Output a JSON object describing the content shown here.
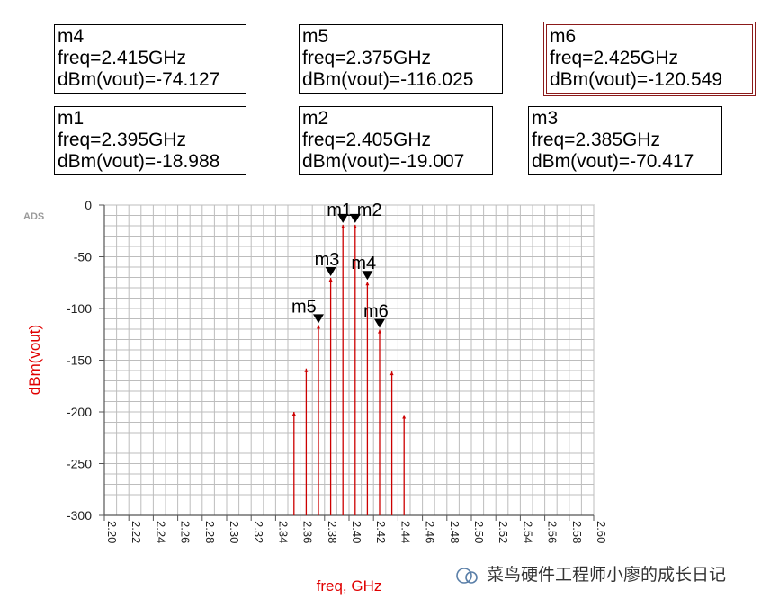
{
  "markers": [
    {
      "id": "m4",
      "name": "m4",
      "freq_label": "freq=2.415GHz",
      "value_label": "dBm(vout)=-74.127",
      "freq": 2.415,
      "value": -74.127
    },
    {
      "id": "m5",
      "name": "m5",
      "freq_label": "freq=2.375GHz",
      "value_label": "dBm(vout)=-116.025",
      "freq": 2.375,
      "value": -116.025
    },
    {
      "id": "m6",
      "name": "m6",
      "freq_label": "freq=2.425GHz",
      "value_label": "dBm(vout)=-120.549",
      "freq": 2.425,
      "value": -120.549
    },
    {
      "id": "m1",
      "name": "m1",
      "freq_label": "freq=2.395GHz",
      "value_label": "dBm(vout)=-18.988",
      "freq": 2.395,
      "value": -18.988
    },
    {
      "id": "m2",
      "name": "m2",
      "freq_label": "freq=2.405GHz",
      "value_label": "dBm(vout)=-19.007",
      "freq": 2.405,
      "value": -19.007
    },
    {
      "id": "m3",
      "name": "m3",
      "freq_label": "freq=2.385GHz",
      "value_label": "dBm(vout)=-70.417",
      "freq": 2.385,
      "value": -70.417
    }
  ],
  "chart_data": {
    "type": "stem",
    "title": "",
    "watermark_tag": "ADS",
    "xlabel": "freq, GHz",
    "ylabel": "dBm(vout)",
    "xlim": [
      2.2,
      2.6
    ],
    "ylim": [
      -300,
      0
    ],
    "grid": true,
    "xticks": [
      "2.20",
      "2.22",
      "2.24",
      "2.26",
      "2.28",
      "2.30",
      "2.32",
      "2.34",
      "2.36",
      "2.38",
      "2.40",
      "2.42",
      "2.44",
      "2.46",
      "2.48",
      "2.50",
      "2.52",
      "2.54",
      "2.56",
      "2.58",
      "2.60"
    ],
    "yticks": [
      "0",
      "-50",
      "-100",
      "-150",
      "-200",
      "-250",
      "-300"
    ],
    "series": [
      {
        "name": "dBm(vout)",
        "color": "#cc0000",
        "x": [
          2.355,
          2.365,
          2.375,
          2.385,
          2.395,
          2.405,
          2.415,
          2.425,
          2.435,
          2.445
        ],
        "y": [
          -200,
          -158,
          -116.025,
          -70.417,
          -18.988,
          -19.007,
          -74.127,
          -120.549,
          -161,
          -203
        ]
      }
    ]
  },
  "footer": {
    "watermark": "菜鸟硬件工程师小廖的成长日记"
  }
}
